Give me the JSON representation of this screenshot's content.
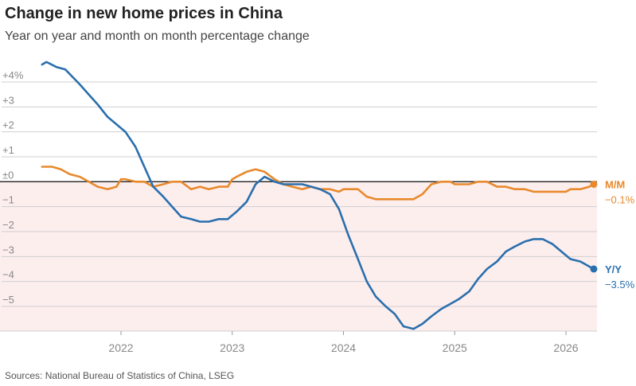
{
  "chart_data": {
    "type": "line",
    "title": "Change in new home prices in China",
    "subtitle": "Year on year and month on month percentage change",
    "source": "Sources: National Bureau of Statistics of China, LSEG",
    "ylim": [
      -6.2,
      4.6
    ],
    "y_ticks": [
      {
        "value": 4,
        "label": "+4%"
      },
      {
        "value": 3,
        "label": "+3"
      },
      {
        "value": 2,
        "label": "+2"
      },
      {
        "value": 1,
        "label": "+1"
      },
      {
        "value": 0,
        "label": "±0"
      },
      {
        "value": -1,
        "label": "−1"
      },
      {
        "value": -2,
        "label": "−2"
      },
      {
        "value": -3,
        "label": "−3"
      },
      {
        "value": -4,
        "label": "−4"
      },
      {
        "value": -5,
        "label": "−5"
      }
    ],
    "x_ticks": [
      {
        "value": 2022,
        "label": "2022"
      },
      {
        "value": 2023,
        "label": "2023"
      },
      {
        "value": 2024,
        "label": "2024"
      },
      {
        "value": 2025,
        "label": "2025"
      },
      {
        "value": 2026,
        "label": "2026"
      }
    ],
    "xlim": [
      2021.2,
      2026.6
    ],
    "grid": true,
    "negative_shading_color": "#fdeeee",
    "series": [
      {
        "name": "M/M",
        "color": "#e8892c",
        "end_value_label": "−0.1%",
        "points": [
          [
            2021.29,
            0.6
          ],
          [
            2021.38,
            0.6
          ],
          [
            2021.46,
            0.5
          ],
          [
            2021.54,
            0.3
          ],
          [
            2021.63,
            0.2
          ],
          [
            2021.71,
            0.0
          ],
          [
            2021.79,
            -0.2
          ],
          [
            2021.88,
            -0.3
          ],
          [
            2021.96,
            -0.2
          ],
          [
            2022.0,
            0.1
          ],
          [
            2022.04,
            0.1
          ],
          [
            2022.13,
            0.0
          ],
          [
            2022.21,
            0.0
          ],
          [
            2022.29,
            -0.2
          ],
          [
            2022.38,
            -0.1
          ],
          [
            2022.46,
            0.0
          ],
          [
            2022.54,
            0.0
          ],
          [
            2022.63,
            -0.3
          ],
          [
            2022.71,
            -0.2
          ],
          [
            2022.79,
            -0.3
          ],
          [
            2022.88,
            -0.2
          ],
          [
            2022.96,
            -0.2
          ],
          [
            2023.0,
            0.1
          ],
          [
            2023.04,
            0.2
          ],
          [
            2023.13,
            0.4
          ],
          [
            2023.21,
            0.5
          ],
          [
            2023.29,
            0.4
          ],
          [
            2023.38,
            0.1
          ],
          [
            2023.46,
            -0.1
          ],
          [
            2023.54,
            -0.2
          ],
          [
            2023.63,
            -0.3
          ],
          [
            2023.71,
            -0.2
          ],
          [
            2023.79,
            -0.3
          ],
          [
            2023.88,
            -0.3
          ],
          [
            2023.96,
            -0.4
          ],
          [
            2024.0,
            -0.3
          ],
          [
            2024.04,
            -0.3
          ],
          [
            2024.13,
            -0.3
          ],
          [
            2024.21,
            -0.6
          ],
          [
            2024.29,
            -0.7
          ],
          [
            2024.38,
            -0.7
          ],
          [
            2024.46,
            -0.7
          ],
          [
            2024.54,
            -0.7
          ],
          [
            2024.63,
            -0.7
          ],
          [
            2024.71,
            -0.5
          ],
          [
            2024.79,
            -0.1
          ],
          [
            2024.88,
            0.0
          ],
          [
            2024.96,
            0.0
          ],
          [
            2025.0,
            -0.1
          ],
          [
            2025.04,
            -0.1
          ],
          [
            2025.13,
            -0.1
          ],
          [
            2025.21,
            0.0
          ],
          [
            2025.29,
            0.0
          ],
          [
            2025.38,
            -0.2
          ],
          [
            2025.46,
            -0.2
          ],
          [
            2025.54,
            -0.3
          ],
          [
            2025.63,
            -0.3
          ],
          [
            2025.71,
            -0.4
          ],
          [
            2025.79,
            -0.4
          ],
          [
            2025.88,
            -0.4
          ],
          [
            2025.96,
            -0.4
          ],
          [
            2026.0,
            -0.4
          ],
          [
            2026.04,
            -0.3
          ],
          [
            2026.13,
            -0.3
          ],
          [
            2026.21,
            -0.2
          ],
          [
            2026.25,
            -0.1
          ]
        ]
      },
      {
        "name": "Y/Y",
        "color": "#2a6fad",
        "end_value_label": "−3.5%",
        "points": [
          [
            2021.29,
            4.7
          ],
          [
            2021.33,
            4.8
          ],
          [
            2021.42,
            4.6
          ],
          [
            2021.5,
            4.5
          ],
          [
            2021.63,
            3.9
          ],
          [
            2021.71,
            3.5
          ],
          [
            2021.79,
            3.1
          ],
          [
            2021.88,
            2.6
          ],
          [
            2021.96,
            2.3
          ],
          [
            2022.04,
            2.0
          ],
          [
            2022.13,
            1.4
          ],
          [
            2022.21,
            0.6
          ],
          [
            2022.29,
            -0.2
          ],
          [
            2022.38,
            -0.6
          ],
          [
            2022.46,
            -1.0
          ],
          [
            2022.54,
            -1.4
          ],
          [
            2022.63,
            -1.5
          ],
          [
            2022.71,
            -1.6
          ],
          [
            2022.79,
            -1.6
          ],
          [
            2022.88,
            -1.5
          ],
          [
            2022.96,
            -1.5
          ],
          [
            2023.04,
            -1.2
          ],
          [
            2023.13,
            -0.8
          ],
          [
            2023.21,
            -0.1
          ],
          [
            2023.29,
            0.2
          ],
          [
            2023.38,
            0.0
          ],
          [
            2023.46,
            -0.1
          ],
          [
            2023.54,
            -0.1
          ],
          [
            2023.63,
            -0.1
          ],
          [
            2023.71,
            -0.2
          ],
          [
            2023.79,
            -0.3
          ],
          [
            2023.88,
            -0.5
          ],
          [
            2023.96,
            -1.1
          ],
          [
            2024.04,
            -2.1
          ],
          [
            2024.13,
            -3.1
          ],
          [
            2024.21,
            -4.0
          ],
          [
            2024.29,
            -4.6
          ],
          [
            2024.38,
            -5.0
          ],
          [
            2024.46,
            -5.3
          ],
          [
            2024.54,
            -5.8
          ],
          [
            2024.63,
            -5.9
          ],
          [
            2024.71,
            -5.7
          ],
          [
            2024.79,
            -5.4
          ],
          [
            2024.88,
            -5.1
          ],
          [
            2024.96,
            -4.9
          ],
          [
            2025.04,
            -4.7
          ],
          [
            2025.13,
            -4.4
          ],
          [
            2025.21,
            -3.9
          ],
          [
            2025.29,
            -3.5
          ],
          [
            2025.38,
            -3.2
          ],
          [
            2025.46,
            -2.8
          ],
          [
            2025.54,
            -2.6
          ],
          [
            2025.63,
            -2.4
          ],
          [
            2025.71,
            -2.3
          ],
          [
            2025.79,
            -2.3
          ],
          [
            2025.88,
            -2.5
          ],
          [
            2025.96,
            -2.8
          ],
          [
            2026.04,
            -3.1
          ],
          [
            2026.13,
            -3.2
          ],
          [
            2026.21,
            -3.4
          ],
          [
            2026.25,
            -3.5
          ]
        ]
      }
    ]
  }
}
